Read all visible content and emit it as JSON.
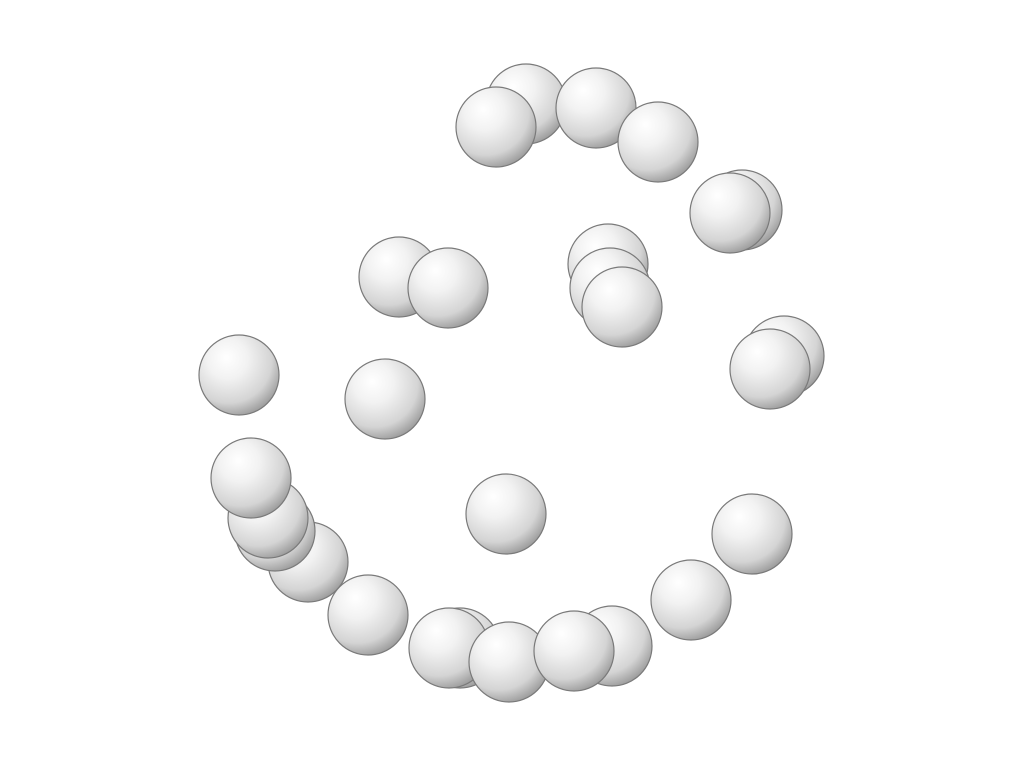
{
  "scene": {
    "background": "#ffffff",
    "sphere_color": "#e8e8e8",
    "sphere_highlight": "#ffffff",
    "sphere_shadow": "#9a9a9a",
    "sphere_outline": "#7a7a7a"
  }
}
